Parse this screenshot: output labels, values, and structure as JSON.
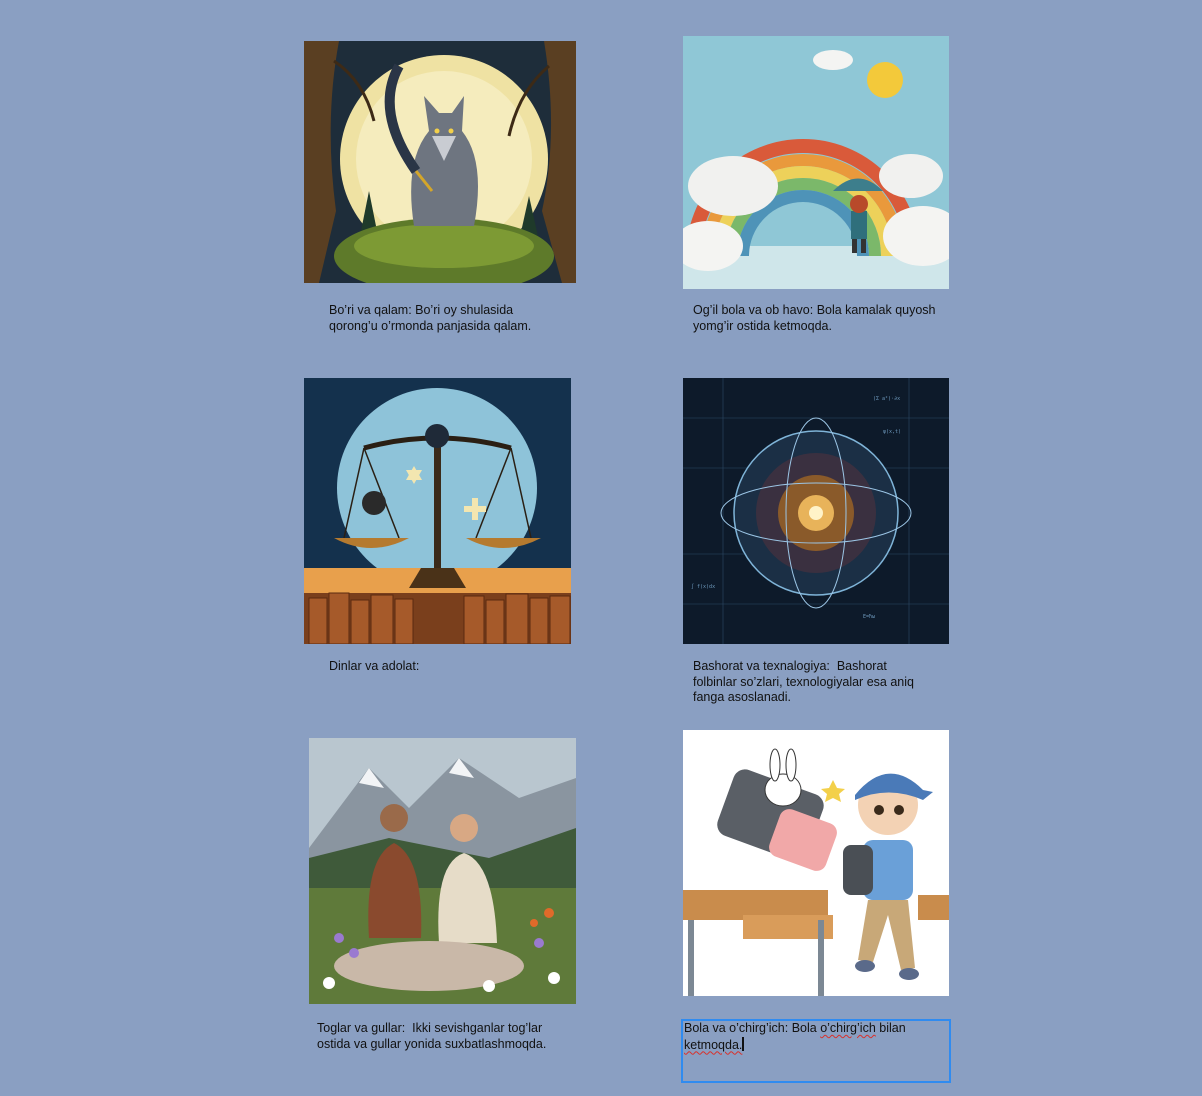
{
  "cards": [
    {
      "image_subject": "wolf-with-quill-under-full-moon",
      "caption": "Bo’ri va qalam: Bo’ri oy shulasida\nqorong’u o’rmonda panjasida qalam."
    },
    {
      "image_subject": "boy-with-umbrella-under-rainbow-and-sun",
      "caption": "Og’il bola va ob havo: Bola kamalak quyosh\nyomg’ir ostida ketmoqda."
    },
    {
      "image_subject": "scales-with-religious-symbols-and-books",
      "caption": "Dinlar va adolat:"
    },
    {
      "image_subject": "glowing-sphere-with-equations",
      "caption": "Bashorat va texnalogiya:  Bashorat\nfolbinlar so’zlari, texnologiyalar esa aniq\nfanga asoslanadi."
    },
    {
      "image_subject": "couple-sitting-in-mountain-meadow-with-flowers",
      "caption": "Toglar va gullar:  Ikki sevishganlar tog’lar\nostida va gullar yonida suxbatlashmoqda."
    },
    {
      "image_subject": "cartoon-boy-running-with-eraser-and-bunny-in-classroom",
      "caption_part1": "Bola va o’chirg’ich: Bola ",
      "caption_squiggle1": "o’chirg’ich",
      "caption_part2": " bilan\n",
      "caption_squiggle2": "ketmoqda."
    }
  ],
  "colors": {
    "background": "#8a9fc2",
    "focus_border": "#2f8bf0",
    "spellcheck": "#d9302a"
  }
}
